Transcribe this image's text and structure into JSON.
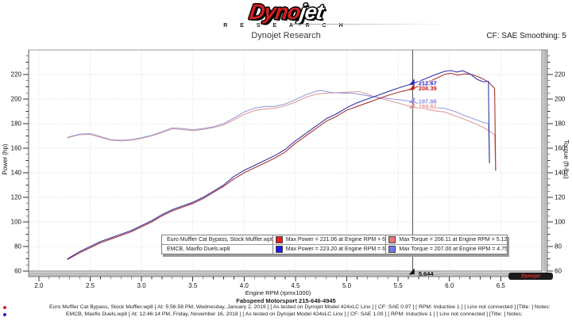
{
  "header": {
    "logo_dyno": "Dyno",
    "logo_jet": "jet",
    "logo_research": "R E S E A R C H",
    "subtitle": "Dynojet Research",
    "cf_label": "CF: SAE Smoothing: 5"
  },
  "chart_data": {
    "type": "line",
    "xlabel": "Engine RPM (rpmx1000)",
    "ylabel_left": "Power (hp)",
    "ylabel_right": "Torque (ft-lbs)",
    "xlim": [
      1.9,
      6.9
    ],
    "ylim": [
      60,
      240
    ],
    "x_ticks": [
      2.0,
      2.5,
      3.0,
      3.5,
      4.0,
      4.5,
      5.0,
      5.5,
      6.0,
      6.5
    ],
    "y_ticks": [
      60,
      80,
      100,
      120,
      140,
      160,
      180,
      200,
      220
    ],
    "grid": "dotted",
    "cursor": {
      "rpm": 5.644,
      "label": "5.644",
      "readouts": [
        {
          "series": "EMCB, Maxflo Duels.wp8 - Power",
          "value": "212.67",
          "color": "#2222c4"
        },
        {
          "series": "Euro Muffler Cat Bypass, Stock Muffler.wp8 - Power",
          "value": "208.39",
          "color": "#c42222"
        },
        {
          "series": "EMCB, Maxflo Duels.wp8 - Torque",
          "value": "197.88",
          "color": "#8e8ee0"
        },
        {
          "series": "Euro Muffler Cat Bypass, Stock Muffler.wp8 - Torque",
          "value": "193.51",
          "color": "#e08e8e"
        }
      ]
    },
    "series": [
      {
        "id": "torque-euro-muffler",
        "name": "Euro Muffler Cat Bypass, Stock Muffler.wp8 - Torque (ft-lbs)",
        "color": "#dc9e9e",
        "max": {
          "value": 206.11,
          "rpm": 5.12
        },
        "points": [
          [
            2.28,
            168.5
          ],
          [
            2.4,
            171
          ],
          [
            2.5,
            171.3
          ],
          [
            2.6,
            168.8
          ],
          [
            2.7,
            166.5
          ],
          [
            2.8,
            166
          ],
          [
            2.9,
            166.5
          ],
          [
            3.0,
            168
          ],
          [
            3.1,
            170
          ],
          [
            3.2,
            172.8
          ],
          [
            3.3,
            175.8
          ],
          [
            3.4,
            175.2
          ],
          [
            3.5,
            174.2
          ],
          [
            3.6,
            175.2
          ],
          [
            3.7,
            176.8
          ],
          [
            3.8,
            179
          ],
          [
            3.9,
            183
          ],
          [
            4.0,
            187.5
          ],
          [
            4.1,
            190.5
          ],
          [
            4.2,
            192
          ],
          [
            4.3,
            192.5
          ],
          [
            4.4,
            194.5
          ],
          [
            4.5,
            197.5
          ],
          [
            4.6,
            201.5
          ],
          [
            4.7,
            204
          ],
          [
            4.8,
            204.8
          ],
          [
            4.9,
            205.2
          ],
          [
            5.0,
            205.6
          ],
          [
            5.12,
            206.11
          ],
          [
            5.2,
            204
          ],
          [
            5.3,
            201
          ],
          [
            5.4,
            199
          ],
          [
            5.5,
            196.8
          ],
          [
            5.644,
            193.51
          ],
          [
            5.75,
            192
          ],
          [
            5.85,
            190.5
          ],
          [
            5.95,
            189.5
          ],
          [
            6.05,
            186.5
          ],
          [
            6.15,
            183.5
          ],
          [
            6.25,
            180
          ],
          [
            6.33,
            177
          ],
          [
            6.4,
            173.5
          ],
          [
            6.44,
            171
          ],
          [
            6.45,
            142
          ]
        ]
      },
      {
        "id": "torque-emcb-maxflo",
        "name": "EMCB, Maxflo Duels.wp8 - Torque (ft-lbs)",
        "color": "#9e9edc",
        "max": {
          "value": 207.0,
          "rpm": 4.75
        },
        "points": [
          [
            2.28,
            169
          ],
          [
            2.4,
            171.5
          ],
          [
            2.5,
            172
          ],
          [
            2.6,
            169.5
          ],
          [
            2.7,
            167
          ],
          [
            2.8,
            166.5
          ],
          [
            2.9,
            167
          ],
          [
            3.0,
            168.5
          ],
          [
            3.1,
            170.5
          ],
          [
            3.2,
            173.5
          ],
          [
            3.3,
            176.5
          ],
          [
            3.4,
            176
          ],
          [
            3.5,
            175
          ],
          [
            3.6,
            176
          ],
          [
            3.7,
            177.5
          ],
          [
            3.8,
            180
          ],
          [
            3.9,
            184.5
          ],
          [
            4.0,
            189.5
          ],
          [
            4.1,
            192.5
          ],
          [
            4.2,
            194
          ],
          [
            4.3,
            194
          ],
          [
            4.4,
            196
          ],
          [
            4.5,
            199.5
          ],
          [
            4.6,
            203.5
          ],
          [
            4.7,
            206.3
          ],
          [
            4.75,
            207
          ],
          [
            4.85,
            205.5
          ],
          [
            4.95,
            204.8
          ],
          [
            5.05,
            204.8
          ],
          [
            5.15,
            203.5
          ],
          [
            5.25,
            202
          ],
          [
            5.35,
            201
          ],
          [
            5.45,
            200
          ],
          [
            5.55,
            199
          ],
          [
            5.644,
            197.88
          ],
          [
            5.75,
            195
          ],
          [
            5.85,
            193
          ],
          [
            5.95,
            192.5
          ],
          [
            6.05,
            190
          ],
          [
            6.15,
            186.5
          ],
          [
            6.25,
            183.5
          ],
          [
            6.33,
            181
          ],
          [
            6.38,
            180
          ],
          [
            6.39,
            148
          ]
        ]
      },
      {
        "id": "power-euro-muffler",
        "name": "Euro Muffler Cat Bypass, Stock Muffler.wp8 - Power (hp)",
        "color": "#a83636",
        "max": {
          "value": 221.06,
          "rpm": 6.01
        },
        "points": [
          [
            2.28,
            69.5
          ],
          [
            2.4,
            75
          ],
          [
            2.5,
            79
          ],
          [
            2.6,
            83
          ],
          [
            2.7,
            86
          ],
          [
            2.8,
            89
          ],
          [
            2.9,
            92
          ],
          [
            3.0,
            96
          ],
          [
            3.1,
            100
          ],
          [
            3.2,
            105
          ],
          [
            3.3,
            109
          ],
          [
            3.4,
            112
          ],
          [
            3.5,
            115
          ],
          [
            3.6,
            119
          ],
          [
            3.7,
            124
          ],
          [
            3.8,
            129
          ],
          [
            3.9,
            135
          ],
          [
            4.0,
            140
          ],
          [
            4.1,
            144
          ],
          [
            4.2,
            148
          ],
          [
            4.3,
            152
          ],
          [
            4.4,
            157
          ],
          [
            4.5,
            164
          ],
          [
            4.6,
            170
          ],
          [
            4.7,
            176
          ],
          [
            4.8,
            182
          ],
          [
            4.9,
            186
          ],
          [
            5.0,
            191
          ],
          [
            5.1,
            194
          ],
          [
            5.2,
            197
          ],
          [
            5.3,
            200
          ],
          [
            5.4,
            203
          ],
          [
            5.5,
            205.5
          ],
          [
            5.644,
            208.39
          ],
          [
            5.75,
            212.5
          ],
          [
            5.85,
            216
          ],
          [
            5.95,
            220
          ],
          [
            6.01,
            221.06
          ],
          [
            6.08,
            219.5
          ],
          [
            6.15,
            220.5
          ],
          [
            6.22,
            220
          ],
          [
            6.3,
            217.5
          ],
          [
            6.38,
            214
          ],
          [
            6.44,
            208.5
          ],
          [
            6.45,
            142
          ]
        ]
      },
      {
        "id": "power-emcb-maxflo",
        "name": "EMCB, Maxflo Duels.wp8 - Power (hp)",
        "color": "#3636a8",
        "max": {
          "value": 223.2,
          "rpm": 6.01
        },
        "points": [
          [
            2.28,
            70
          ],
          [
            2.4,
            76
          ],
          [
            2.5,
            80
          ],
          [
            2.6,
            84
          ],
          [
            2.7,
            87
          ],
          [
            2.8,
            90
          ],
          [
            2.9,
            93
          ],
          [
            3.0,
            97
          ],
          [
            3.1,
            101
          ],
          [
            3.2,
            106
          ],
          [
            3.3,
            110
          ],
          [
            3.4,
            113
          ],
          [
            3.5,
            116
          ],
          [
            3.6,
            120
          ],
          [
            3.7,
            125
          ],
          [
            3.8,
            130
          ],
          [
            3.9,
            137
          ],
          [
            4.0,
            142
          ],
          [
            4.1,
            146
          ],
          [
            4.2,
            150
          ],
          [
            4.3,
            154
          ],
          [
            4.4,
            159
          ],
          [
            4.5,
            166
          ],
          [
            4.6,
            172
          ],
          [
            4.7,
            178
          ],
          [
            4.8,
            184
          ],
          [
            4.9,
            188
          ],
          [
            5.0,
            193
          ],
          [
            5.1,
            197
          ],
          [
            5.2,
            200
          ],
          [
            5.3,
            203
          ],
          [
            5.4,
            206
          ],
          [
            5.5,
            209
          ],
          [
            5.644,
            212.67
          ],
          [
            5.75,
            216
          ],
          [
            5.85,
            219.5
          ],
          [
            5.95,
            222.5
          ],
          [
            6.01,
            223.2
          ],
          [
            6.07,
            222
          ],
          [
            6.13,
            223
          ],
          [
            6.2,
            220.5
          ],
          [
            6.27,
            216
          ],
          [
            6.33,
            214
          ],
          [
            6.38,
            214.5
          ],
          [
            6.39,
            148
          ]
        ]
      }
    ]
  },
  "legend": {
    "rows": [
      {
        "file": "Euro Muffler Cat Bypass, Stock Muffler.wp8",
        "power": "Max Power = 221.06 at Engine RPM = 6.01",
        "power_color": "#ee1c1c",
        "torque": "Max Torque = 206.11 at Engine RPM = 5.12",
        "torque_color": "#ee7474"
      },
      {
        "file": "EMCB, Maxflo Duels.wp8",
        "power": "Max Power = 223.20 at Engine RPM = 6.01",
        "power_color": "#1c1cee",
        "torque": "Max Torque = 207.00 at Engine RPM = 4.75",
        "torque_color": "#7474ee"
      }
    ]
  },
  "footer": {
    "shop_line": "Fabspeed Motorsport 215-646-4945",
    "runs": [
      {
        "bullet_color": "#cc2222",
        "text": "Euro Muffler Cat Bypass, Stock Muffler.wp8 [ At: 5:56:58 PM, Wednesday, January 2, 2019 ] [ As tested on Dynojet Model 424xLC Linx ] [ CF: SAE 0.97 ] [ RPM: Inductive 1 ] [ Linx not connected ] [Title: ]  Notes:"
      },
      {
        "bullet_color": "#2222cc",
        "text": "EMCB, Maxflo Duels.wp8 [ At: 12:46:14 PM, Friday, November 16, 2018 ] [ As tested on Dynojet Model 424xLC Linx ] [ CF: SAE 1.00 ] [ RPM: Inductive 1 ] [ Linx not connected ] [Title: ]  Notes:"
      }
    ]
  },
  "badge": {
    "label": "Dynojet"
  }
}
